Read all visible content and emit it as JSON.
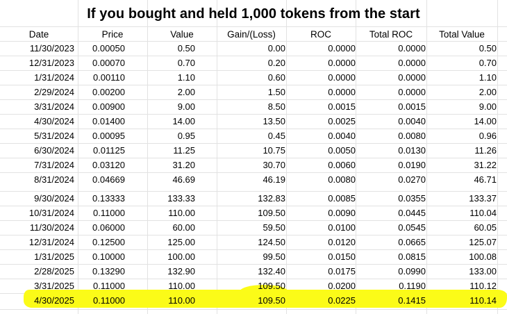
{
  "sheet": {
    "title": "If you bought and held 1,000 tokens from the start",
    "headers": [
      "Date",
      "Price",
      "Value",
      "Gain/(Loss)",
      "ROC",
      "Total ROC",
      "Total Value"
    ],
    "rows": [
      [
        "11/30/2023",
        "0.00050",
        "0.50",
        "0.00",
        "0.0000",
        "0.0000",
        "0.50"
      ],
      [
        "12/31/2023",
        "0.00070",
        "0.70",
        "0.20",
        "0.0000",
        "0.0000",
        "0.70"
      ],
      [
        "1/31/2024",
        "0.00110",
        "1.10",
        "0.60",
        "0.0000",
        "0.0000",
        "1.10"
      ],
      [
        "2/29/2024",
        "0.00200",
        "2.00",
        "1.50",
        "0.0000",
        "0.0000",
        "2.00"
      ],
      [
        "3/31/2024",
        "0.00900",
        "9.00",
        "8.50",
        "0.0015",
        "0.0015",
        "9.00"
      ],
      [
        "4/30/2024",
        "0.01400",
        "14.00",
        "13.50",
        "0.0025",
        "0.0040",
        "14.00"
      ],
      [
        "5/31/2024",
        "0.00095",
        "0.95",
        "0.45",
        "0.0040",
        "0.0080",
        "0.96"
      ],
      [
        "6/30/2024",
        "0.01125",
        "11.25",
        "10.75",
        "0.0050",
        "0.0130",
        "11.26"
      ],
      [
        "7/31/2024",
        "0.03120",
        "31.20",
        "30.70",
        "0.0060",
        "0.0190",
        "31.22"
      ],
      [
        "8/31/2024",
        "0.04669",
        "46.69",
        "46.19",
        "0.0080",
        "0.0270",
        "46.71"
      ],
      [
        "9/30/2024",
        "0.13333",
        "133.33",
        "132.83",
        "0.0085",
        "0.0355",
        "133.37"
      ],
      [
        "10/31/2024",
        "0.11000",
        "110.00",
        "109.50",
        "0.0090",
        "0.0445",
        "110.04"
      ],
      [
        "11/30/2024",
        "0.06000",
        "60.00",
        "59.50",
        "0.0100",
        "0.0545",
        "60.05"
      ],
      [
        "12/31/2024",
        "0.12500",
        "125.00",
        "124.50",
        "0.0120",
        "0.0665",
        "125.07"
      ],
      [
        "1/31/2025",
        "0.10000",
        "100.00",
        "99.50",
        "0.0150",
        "0.0815",
        "100.08"
      ],
      [
        "2/28/2025",
        "0.13290",
        "132.90",
        "132.40",
        "0.0175",
        "0.0990",
        "133.00"
      ],
      [
        "3/31/2025",
        "0.11000",
        "110.00",
        "109.50",
        "0.0200",
        "0.1190",
        "110.12"
      ],
      [
        "4/30/2025",
        "0.11000",
        "110.00",
        "109.50",
        "0.0225",
        "0.1415",
        "110.14"
      ]
    ],
    "highlighted_row": 17,
    "highlight_color": "#fbfb18",
    "gridline_color": "#e2e2e2"
  }
}
